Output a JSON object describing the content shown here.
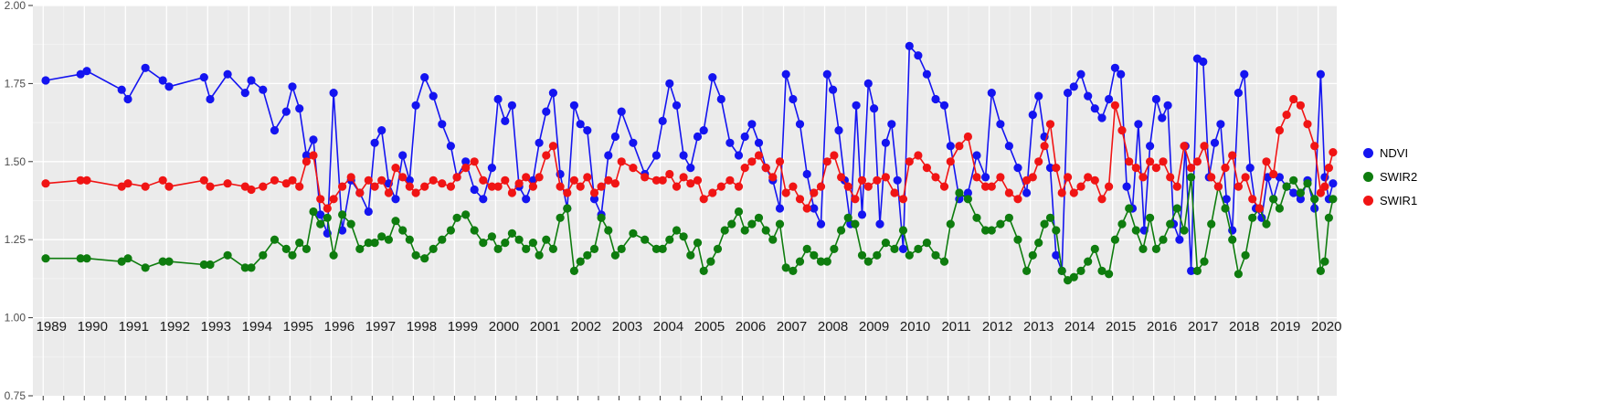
{
  "chart_data": {
    "type": "line",
    "title": "",
    "xlabel": "",
    "ylabel": "",
    "x_tick_labels": [
      1989,
      1990,
      1991,
      1992,
      1993,
      1994,
      1995,
      1996,
      1997,
      1998,
      1999,
      2000,
      2001,
      2002,
      2003,
      2004,
      2005,
      2006,
      2007,
      2008,
      2009,
      2010,
      2011,
      2012,
      2013,
      2014,
      2015,
      2016,
      2017,
      2018,
      2019,
      2020
    ],
    "y_tick_labels": [
      "2.00",
      "1.75",
      "1.50",
      "1.25",
      "1.00",
      "0.75"
    ],
    "y_tick_values": [
      2.0,
      1.75,
      1.5,
      1.25,
      1.0,
      0.75
    ],
    "ylim": [
      0.75,
      2.0
    ],
    "xlim": [
      1988.75,
      2020.45
    ],
    "grid": "white major and minor gridlines on gray panel (ggplot style)",
    "panel_bg": "#EBEBEB",
    "legend_position": "right",
    "series": [
      {
        "name": "NDVI",
        "color": "#1414F0",
        "marker": "circle",
        "by_year": {
          "1989": [
            1.76,
            1.78
          ],
          "1990": [
            1.79,
            1.73
          ],
          "1991": [
            1.7,
            1.8,
            1.76
          ],
          "1992": [
            1.74,
            1.77
          ],
          "1993": [
            1.7,
            1.78,
            1.72
          ],
          "1994": [
            1.76,
            1.73,
            1.6,
            1.66
          ],
          "1995": [
            1.74,
            1.67,
            1.52,
            1.57,
            1.33,
            1.27
          ],
          "1996": [
            1.72,
            1.28,
            1.44,
            1.4,
            1.34
          ],
          "1997": [
            1.56,
            1.6,
            1.43,
            1.38,
            1.52,
            1.44
          ],
          "1998": [
            1.68,
            1.77,
            1.71,
            1.62,
            1.55
          ],
          "1999": [
            1.45,
            1.5,
            1.41,
            1.38,
            1.48
          ],
          "2000": [
            1.7,
            1.63,
            1.68,
            1.42,
            1.38,
            1.44
          ],
          "2001": [
            1.56,
            1.66,
            1.72,
            1.46,
            1.35,
            1.68
          ],
          "2002": [
            1.62,
            1.6,
            1.38,
            1.33,
            1.52,
            1.58
          ],
          "2003": [
            1.66,
            1.56,
            1.46,
            1.52
          ],
          "2004": [
            1.63,
            1.75,
            1.68,
            1.52,
            1.48,
            1.58
          ],
          "2005": [
            1.6,
            1.77,
            1.7,
            1.56,
            1.52
          ],
          "2006": [
            1.58,
            1.62,
            1.56,
            1.48,
            1.44,
            1.35
          ],
          "2007": [
            1.78,
            1.7,
            1.62,
            1.46,
            1.35,
            1.3
          ],
          "2008": [
            1.78,
            1.73,
            1.6,
            1.44,
            1.3,
            1.68,
            1.33
          ],
          "2009": [
            1.75,
            1.67,
            1.3,
            1.56,
            1.62,
            1.44,
            1.22
          ],
          "2010": [
            1.87,
            1.84,
            1.78,
            1.7,
            1.68
          ],
          "2011": [
            1.55,
            1.38,
            1.4,
            1.52,
            1.45
          ],
          "2012": [
            1.72,
            1.62,
            1.55,
            1.48,
            1.4
          ],
          "2013": [
            1.65,
            1.71,
            1.58,
            1.48,
            1.2,
            1.15,
            1.72
          ],
          "2014": [
            1.74,
            1.78,
            1.71,
            1.67,
            1.64,
            1.7
          ],
          "2015": [
            1.8,
            1.78,
            1.42,
            1.35,
            1.62,
            1.28,
            1.55
          ],
          "2016": [
            1.7,
            1.64,
            1.68,
            1.3,
            1.25,
            1.55,
            1.15
          ],
          "2017": [
            1.83,
            1.82,
            1.45,
            1.56,
            1.62,
            1.38,
            1.28
          ],
          "2018": [
            1.72,
            1.78,
            1.48,
            1.35,
            1.32,
            1.45,
            1.38
          ],
          "2019": [
            1.45,
            1.42,
            1.4,
            1.38,
            1.44,
            1.35
          ],
          "2020": [
            1.78,
            1.45,
            1.38,
            1.43
          ]
        }
      },
      {
        "name": "SWIR2",
        "color": "#0E7C0E",
        "marker": "circle",
        "by_year": {
          "1989": [
            1.19,
            1.19
          ],
          "1990": [
            1.19,
            1.18
          ],
          "1991": [
            1.19,
            1.16,
            1.18
          ],
          "1992": [
            1.18,
            1.17
          ],
          "1993": [
            1.17,
            1.2,
            1.16
          ],
          "1994": [
            1.16,
            1.2,
            1.25,
            1.22
          ],
          "1995": [
            1.2,
            1.24,
            1.22,
            1.34,
            1.3,
            1.32
          ],
          "1996": [
            1.2,
            1.33,
            1.3,
            1.22,
            1.24
          ],
          "1997": [
            1.24,
            1.26,
            1.25,
            1.31,
            1.28,
            1.25
          ],
          "1998": [
            1.2,
            1.19,
            1.22,
            1.25,
            1.28
          ],
          "1999": [
            1.32,
            1.33,
            1.28,
            1.24,
            1.26
          ],
          "2000": [
            1.22,
            1.24,
            1.27,
            1.25,
            1.22,
            1.24
          ],
          "2001": [
            1.2,
            1.25,
            1.22,
            1.32,
            1.35,
            1.15
          ],
          "2002": [
            1.18,
            1.2,
            1.22,
            1.32,
            1.28,
            1.2
          ],
          "2003": [
            1.22,
            1.27,
            1.25,
            1.22
          ],
          "2004": [
            1.22,
            1.25,
            1.28,
            1.26,
            1.2,
            1.24
          ],
          "2005": [
            1.15,
            1.18,
            1.22,
            1.28,
            1.3,
            1.34
          ],
          "2006": [
            1.28,
            1.3,
            1.32,
            1.28,
            1.25,
            1.3
          ],
          "2007": [
            1.16,
            1.15,
            1.18,
            1.22,
            1.2,
            1.18
          ],
          "2008": [
            1.18,
            1.22,
            1.28,
            1.32,
            1.3,
            1.2
          ],
          "2009": [
            1.18,
            1.2,
            1.24,
            1.22,
            1.28
          ],
          "2010": [
            1.2,
            1.22,
            1.24,
            1.2,
            1.18
          ],
          "2011": [
            1.3,
            1.4,
            1.38,
            1.32,
            1.28
          ],
          "2012": [
            1.28,
            1.3,
            1.32,
            1.25,
            1.15
          ],
          "2013": [
            1.2,
            1.24,
            1.3,
            1.32,
            1.28,
            1.15,
            1.12
          ],
          "2014": [
            1.13,
            1.15,
            1.18,
            1.22,
            1.15,
            1.14
          ],
          "2015": [
            1.25,
            1.3,
            1.35,
            1.28,
            1.22,
            1.32
          ],
          "2016": [
            1.22,
            1.25,
            1.3,
            1.35,
            1.28,
            1.45
          ],
          "2017": [
            1.15,
            1.18,
            1.3,
            1.42,
            1.35,
            1.25
          ],
          "2018": [
            1.14,
            1.2,
            1.32,
            1.35,
            1.3,
            1.38
          ],
          "2019": [
            1.35,
            1.42,
            1.44,
            1.4,
            1.43,
            1.38
          ],
          "2020": [
            1.15,
            1.18,
            1.32,
            1.38
          ]
        }
      },
      {
        "name": "SWIR1",
        "color": "#F01414",
        "marker": "circle",
        "by_year": {
          "1989": [
            1.43,
            1.44
          ],
          "1990": [
            1.44,
            1.42
          ],
          "1991": [
            1.43,
            1.42,
            1.44
          ],
          "1992": [
            1.42,
            1.44
          ],
          "1993": [
            1.42,
            1.43,
            1.42
          ],
          "1994": [
            1.41,
            1.42,
            1.44,
            1.43
          ],
          "1995": [
            1.44,
            1.42,
            1.5,
            1.52,
            1.38,
            1.35
          ],
          "1996": [
            1.38,
            1.42,
            1.45,
            1.4,
            1.44
          ],
          "1997": [
            1.42,
            1.44,
            1.4,
            1.48,
            1.45,
            1.42
          ],
          "1998": [
            1.4,
            1.42,
            1.44,
            1.43,
            1.42
          ],
          "1999": [
            1.45,
            1.48,
            1.5,
            1.44,
            1.42
          ],
          "2000": [
            1.42,
            1.44,
            1.4,
            1.43,
            1.45,
            1.42
          ],
          "2001": [
            1.45,
            1.52,
            1.55,
            1.42,
            1.4,
            1.44
          ],
          "2002": [
            1.42,
            1.45,
            1.4,
            1.42,
            1.44,
            1.43
          ],
          "2003": [
            1.5,
            1.48,
            1.45,
            1.44
          ],
          "2004": [
            1.44,
            1.46,
            1.42,
            1.45,
            1.43,
            1.44
          ],
          "2005": [
            1.38,
            1.4,
            1.42,
            1.44,
            1.42
          ],
          "2006": [
            1.48,
            1.5,
            1.52,
            1.48,
            1.45,
            1.5
          ],
          "2007": [
            1.4,
            1.42,
            1.38,
            1.35,
            1.4,
            1.42
          ],
          "2008": [
            1.5,
            1.52,
            1.45,
            1.42,
            1.38,
            1.44
          ],
          "2009": [
            1.42,
            1.44,
            1.45,
            1.4,
            1.38
          ],
          "2010": [
            1.5,
            1.52,
            1.48,
            1.45,
            1.42
          ],
          "2011": [
            1.5,
            1.55,
            1.58,
            1.45,
            1.42
          ],
          "2012": [
            1.42,
            1.45,
            1.4,
            1.38,
            1.44
          ],
          "2013": [
            1.45,
            1.5,
            1.55,
            1.62,
            1.48,
            1.4,
            1.45
          ],
          "2014": [
            1.4,
            1.42,
            1.45,
            1.44,
            1.38,
            1.42
          ],
          "2015": [
            1.68,
            1.6,
            1.5,
            1.48,
            1.45,
            1.5
          ],
          "2016": [
            1.48,
            1.5,
            1.45,
            1.42,
            1.55,
            1.48
          ],
          "2017": [
            1.5,
            1.55,
            1.45,
            1.42,
            1.48,
            1.52
          ],
          "2018": [
            1.42,
            1.45,
            1.38,
            1.35,
            1.5,
            1.46
          ],
          "2019": [
            1.6,
            1.65,
            1.7,
            1.68,
            1.62,
            1.55
          ],
          "2020": [
            1.4,
            1.42,
            1.48,
            1.53
          ]
        }
      }
    ]
  },
  "legend": {
    "items": [
      {
        "label": "NDVI"
      },
      {
        "label": "SWIR2"
      },
      {
        "label": "SWIR1"
      }
    ]
  }
}
